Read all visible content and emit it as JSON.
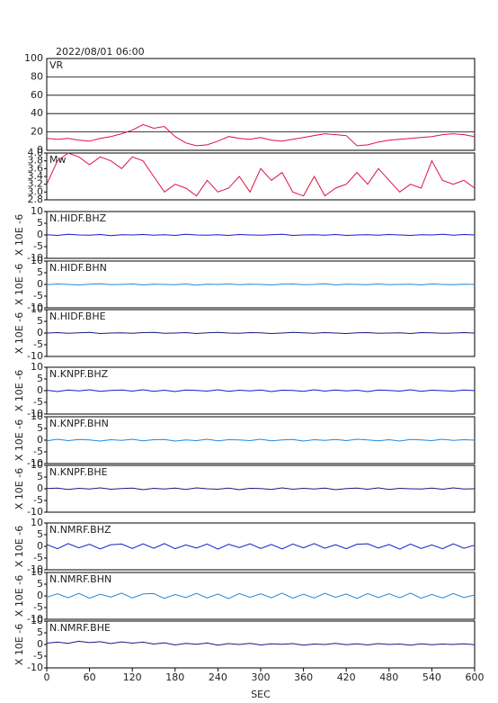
{
  "chart_data": [
    {
      "type": "line",
      "title": "2022/08/01 06:00",
      "x": [
        0,
        15,
        30,
        45,
        60,
        75,
        90,
        105,
        120,
        135,
        150,
        165,
        180,
        195,
        210,
        225,
        240,
        255,
        270,
        285,
        300,
        315,
        330,
        345,
        360,
        375,
        390,
        405,
        420,
        435,
        450,
        465,
        480,
        495,
        510,
        525,
        540,
        555,
        570,
        585,
        600
      ],
      "xlim": [
        0,
        600
      ],
      "ylim": [
        0,
        100
      ],
      "yticks": [
        0,
        20,
        40,
        60,
        80,
        100
      ],
      "grid": true,
      "series": [
        {
          "name": "VR",
          "color": "#dd1144",
          "values": [
            13,
            12,
            13,
            11,
            10,
            13,
            15,
            18,
            22,
            28,
            24,
            26,
            15,
            8,
            5,
            6,
            10,
            15,
            13,
            12,
            14,
            11,
            10,
            12,
            14,
            16,
            18,
            17,
            16,
            5,
            6,
            9,
            11,
            12,
            13,
            14,
            15,
            17,
            18,
            17,
            15
          ]
        }
      ]
    },
    {
      "type": "line",
      "x": [
        0,
        15,
        30,
        45,
        60,
        75,
        90,
        105,
        120,
        135,
        150,
        165,
        180,
        195,
        210,
        225,
        240,
        255,
        270,
        285,
        300,
        315,
        330,
        345,
        360,
        375,
        390,
        405,
        420,
        435,
        450,
        465,
        480,
        495,
        510,
        525,
        540,
        555,
        570,
        585,
        600
      ],
      "xlim": [
        0,
        600
      ],
      "ylim": [
        2.8,
        4.0
      ],
      "yticks": [
        2.8,
        {
          "value": 3,
          "label": "3.0"
        },
        3.2,
        3.4,
        3.6,
        3.8,
        {
          "value": 4,
          "label": "4.0"
        }
      ],
      "series": [
        {
          "name": "Mw",
          "color": "#dd1144",
          "values": [
            3.2,
            3.8,
            4.0,
            3.9,
            3.7,
            3.9,
            3.8,
            3.6,
            3.9,
            3.8,
            3.4,
            3.0,
            3.2,
            3.1,
            2.9,
            3.3,
            3.0,
            3.1,
            3.4,
            3.0,
            3.6,
            3.3,
            3.5,
            3.0,
            2.9,
            3.4,
            2.9,
            3.1,
            3.2,
            3.5,
            3.2,
            3.6,
            3.3,
            3.0,
            3.2,
            3.1,
            3.8,
            3.3,
            3.2,
            3.3,
            3.1
          ]
        }
      ]
    },
    {
      "type": "line",
      "ylabel": "X 10E -6",
      "x": [
        0,
        15,
        30,
        45,
        60,
        75,
        90,
        105,
        120,
        135,
        150,
        165,
        180,
        195,
        210,
        225,
        240,
        255,
        270,
        285,
        300,
        315,
        330,
        345,
        360,
        375,
        390,
        405,
        420,
        435,
        450,
        465,
        480,
        495,
        510,
        525,
        540,
        555,
        570,
        585,
        600
      ],
      "xlim": [
        0,
        600
      ],
      "ylim": [
        -10,
        10
      ],
      "yticks": [
        -10,
        -5,
        0,
        5,
        10
      ],
      "series": [
        {
          "name": "N.HIDF.BHZ",
          "color": "#1a1acc",
          "values": [
            0.1,
            -0.2,
            0.3,
            0,
            -0.1,
            0.2,
            -0.3,
            0.1,
            0,
            0.2,
            -0.1,
            0.1,
            -0.2,
            0.3,
            0,
            -0.1,
            0.1,
            -0.2,
            0.2,
            0,
            -0.1,
            0.1,
            0.3,
            -0.2,
            0,
            0.1,
            -0.1,
            0.2,
            -0.2,
            0,
            0.1,
            -0.1,
            0.2,
            0,
            -0.2,
            0.1,
            0,
            0.3,
            -0.1,
            0.2,
            0
          ]
        }
      ]
    },
    {
      "type": "line",
      "ylabel": "X 10E -6",
      "x": [
        0,
        15,
        30,
        45,
        60,
        75,
        90,
        105,
        120,
        135,
        150,
        165,
        180,
        195,
        210,
        225,
        240,
        255,
        270,
        285,
        300,
        315,
        330,
        345,
        360,
        375,
        390,
        405,
        420,
        435,
        450,
        465,
        480,
        495,
        510,
        525,
        540,
        555,
        570,
        585,
        600
      ],
      "xlim": [
        0,
        600
      ],
      "ylim": [
        -10,
        10
      ],
      "yticks": [
        -10,
        -5,
        0,
        5,
        10
      ],
      "series": [
        {
          "name": "N.HIDF.BHN",
          "color": "#2288dd",
          "values": [
            -0.1,
            0.2,
            0,
            -0.2,
            0.1,
            0.3,
            -0.1,
            0,
            0.2,
            -0.2,
            0.1,
            0,
            -0.1,
            0.2,
            -0.3,
            0.1,
            0,
            0.2,
            -0.1,
            0.1,
            0,
            -0.2,
            0.1,
            0.2,
            -0.1,
            0,
            0.3,
            -0.2,
            0.1,
            0,
            -0.1,
            0.2,
            -0.1,
            0,
            0.1,
            -0.2,
            0.2,
            0,
            -0.1,
            0.1,
            0
          ]
        }
      ]
    },
    {
      "type": "line",
      "ylabel": "X 10E -6",
      "x": [
        0,
        15,
        30,
        45,
        60,
        75,
        90,
        105,
        120,
        135,
        150,
        165,
        180,
        195,
        210,
        225,
        240,
        255,
        270,
        285,
        300,
        315,
        330,
        345,
        360,
        375,
        390,
        405,
        420,
        435,
        450,
        465,
        480,
        495,
        510,
        525,
        540,
        555,
        570,
        585,
        600
      ],
      "xlim": [
        0,
        600
      ],
      "ylim": [
        -10,
        10
      ],
      "yticks": [
        -10,
        -5,
        0,
        5,
        10
      ],
      "series": [
        {
          "name": "N.HIDF.BHE",
          "color": "#1a1a80",
          "values": [
            0,
            0.2,
            -0.1,
            0.1,
            0.3,
            -0.2,
            0,
            0.1,
            -0.1,
            0.2,
            0.3,
            -0.1,
            0,
            0.2,
            -0.2,
            0.1,
            0.3,
            0,
            -0.1,
            0.2,
            0.1,
            -0.2,
            0,
            0.3,
            0.1,
            -0.1,
            0.2,
            0,
            -0.2,
            0.1,
            0.2,
            -0.1,
            0,
            0.1,
            -0.2,
            0.2,
            0.1,
            -0.1,
            0,
            0.2,
            0
          ]
        }
      ]
    },
    {
      "type": "line",
      "ylabel": "X 10E -6",
      "x": [
        0,
        15,
        30,
        45,
        60,
        75,
        90,
        105,
        120,
        135,
        150,
        165,
        180,
        195,
        210,
        225,
        240,
        255,
        270,
        285,
        300,
        315,
        330,
        345,
        360,
        375,
        390,
        405,
        420,
        435,
        450,
        465,
        480,
        495,
        510,
        525,
        540,
        555,
        570,
        585,
        600
      ],
      "xlim": [
        0,
        600
      ],
      "ylim": [
        -10,
        10
      ],
      "yticks": [
        -10,
        -5,
        0,
        5,
        10
      ],
      "series": [
        {
          "name": "N.KNPF.BHZ",
          "color": "#1a1acc",
          "values": [
            0.2,
            -0.4,
            0.3,
            -0.1,
            0.4,
            -0.3,
            0.1,
            0.3,
            -0.2,
            0.4,
            -0.3,
            0.2,
            -0.4,
            0.3,
            0.1,
            -0.2,
            0.4,
            -0.3,
            0.2,
            -0.1,
            0.3,
            -0.4,
            0.2,
            0.1,
            -0.3,
            0.4,
            -0.2,
            0.3,
            -0.1,
            0.2,
            -0.4,
            0.3,
            0.1,
            -0.2,
            0.4,
            -0.3,
            0.2,
            0,
            -0.2,
            0.3,
            0
          ]
        }
      ]
    },
    {
      "type": "line",
      "ylabel": "X 10E -6",
      "x": [
        0,
        15,
        30,
        45,
        60,
        75,
        90,
        105,
        120,
        135,
        150,
        165,
        180,
        195,
        210,
        225,
        240,
        255,
        270,
        285,
        300,
        315,
        330,
        345,
        360,
        375,
        390,
        405,
        420,
        435,
        450,
        465,
        480,
        495,
        510,
        525,
        540,
        555,
        570,
        585,
        600
      ],
      "xlim": [
        0,
        600
      ],
      "ylim": [
        -10,
        10
      ],
      "yticks": [
        -10,
        -5,
        0,
        5,
        10
      ],
      "series": [
        {
          "name": "N.KNPF.BHN",
          "color": "#2288dd",
          "values": [
            -0.3,
            0.4,
            -0.2,
            0.3,
            0.1,
            -0.4,
            0.2,
            -0.1,
            0.4,
            -0.3,
            0.2,
            0.3,
            -0.4,
            0.1,
            -0.2,
            0.4,
            -0.3,
            0.2,
            0.1,
            -0.2,
            0.4,
            -0.3,
            0.1,
            0.3,
            -0.4,
            0.2,
            -0.1,
            0.3,
            -0.2,
            0.4,
            0.1,
            -0.3,
            0.2,
            -0.4,
            0.3,
            0.1,
            -0.2,
            0.4,
            -0.1,
            0.2,
            0
          ]
        }
      ]
    },
    {
      "type": "line",
      "ylabel": "X 10E -6",
      "x": [
        0,
        15,
        30,
        45,
        60,
        75,
        90,
        105,
        120,
        135,
        150,
        165,
        180,
        195,
        210,
        225,
        240,
        255,
        270,
        285,
        300,
        315,
        330,
        345,
        360,
        375,
        390,
        405,
        420,
        435,
        450,
        465,
        480,
        495,
        510,
        525,
        540,
        555,
        570,
        585,
        600
      ],
      "xlim": [
        0,
        600
      ],
      "ylim": [
        -10,
        10
      ],
      "yticks": [
        -10,
        -5,
        0,
        5,
        10
      ],
      "series": [
        {
          "name": "N.KNPF.BHE",
          "color": "#1a1a80",
          "values": [
            0.1,
            0.3,
            -0.3,
            0.2,
            -0.1,
            0.4,
            -0.2,
            0.1,
            0.3,
            -0.4,
            0.2,
            -0.1,
            0.3,
            -0.3,
            0.4,
            0,
            -0.2,
            0.3,
            -0.4,
            0.2,
            0.1,
            -0.3,
            0.4,
            -0.2,
            0.2,
            -0.1,
            0.3,
            -0.4,
            0.1,
            0.3,
            -0.2,
            0.4,
            -0.3,
            0.2,
            0,
            -0.1,
            0.3,
            -0.2,
            0.4,
            -0.1,
            0
          ]
        }
      ]
    },
    {
      "type": "line",
      "ylabel": "X 10E -6",
      "x": [
        0,
        15,
        30,
        45,
        60,
        75,
        90,
        105,
        120,
        135,
        150,
        165,
        180,
        195,
        210,
        225,
        240,
        255,
        270,
        285,
        300,
        315,
        330,
        345,
        360,
        375,
        390,
        405,
        420,
        435,
        450,
        465,
        480,
        495,
        510,
        525,
        540,
        555,
        570,
        585,
        600
      ],
      "xlim": [
        0,
        600
      ],
      "ylim": [
        -10,
        10
      ],
      "yticks": [
        -10,
        -5,
        0,
        5,
        10
      ],
      "series": [
        {
          "name": "N.NMRF.BHZ",
          "color": "#1a1acc",
          "values": [
            0.8,
            -1.0,
            1.2,
            -0.6,
            0.9,
            -1.1,
            0.7,
            1.0,
            -0.9,
            1.1,
            -0.8,
            1.2,
            -1.0,
            0.6,
            -0.7,
            1.0,
            -1.2,
            0.9,
            -0.5,
            1.1,
            -0.9,
            0.8,
            -1.1,
            1.0,
            -0.6,
            1.2,
            -0.8,
            0.7,
            -1.0,
            0.9,
            1.1,
            -0.7,
            0.8,
            -1.2,
            1.0,
            -0.9,
            0.6,
            -1.0,
            1.1,
            -0.8,
            0.5
          ]
        }
      ]
    },
    {
      "type": "line",
      "ylabel": "X 10E -6",
      "x": [
        0,
        15,
        30,
        45,
        60,
        75,
        90,
        105,
        120,
        135,
        150,
        165,
        180,
        195,
        210,
        225,
        240,
        255,
        270,
        285,
        300,
        315,
        330,
        345,
        360,
        375,
        390,
        405,
        420,
        435,
        450,
        465,
        480,
        495,
        510,
        525,
        540,
        555,
        570,
        585,
        600
      ],
      "xlim": [
        0,
        600
      ],
      "ylim": [
        -10,
        10
      ],
      "yticks": [
        -10,
        -5,
        0,
        5,
        10
      ],
      "series": [
        {
          "name": "N.NMRF.BHN",
          "color": "#2288dd",
          "values": [
            -0.6,
            0.9,
            -0.8,
            1.1,
            -1.0,
            0.7,
            -0.5,
            1.2,
            -0.9,
            0.8,
            1.0,
            -1.1,
            0.6,
            -0.7,
            1.1,
            -0.9,
            0.8,
            -1.2,
            1.0,
            -0.6,
            0.9,
            -0.8,
            1.2,
            -1.0,
            0.7,
            -0.9,
            1.1,
            -0.6,
            0.8,
            -1.1,
            1.0,
            -0.7,
            0.9,
            -0.8,
            1.2,
            -1.0,
            0.6,
            -0.9,
            1.0,
            -0.7,
            0.4
          ]
        }
      ]
    },
    {
      "type": "line",
      "ylabel": "X 10E -6",
      "xlabel": "SEC",
      "x": [
        0,
        15,
        30,
        45,
        60,
        75,
        90,
        105,
        120,
        135,
        150,
        165,
        180,
        195,
        210,
        225,
        240,
        255,
        270,
        285,
        300,
        315,
        330,
        345,
        360,
        375,
        390,
        405,
        420,
        435,
        450,
        465,
        480,
        495,
        510,
        525,
        540,
        555,
        570,
        585,
        600
      ],
      "xlim": [
        0,
        600
      ],
      "xticks": [
        0,
        60,
        120,
        180,
        240,
        300,
        360,
        420,
        480,
        540,
        600
      ],
      "ylim": [
        -10,
        10
      ],
      "yticks": [
        -10,
        -5,
        0,
        5,
        10
      ],
      "series": [
        {
          "name": "N.NMRF.BHE",
          "color": "#1a1a80",
          "values": [
            0.6,
            1.0,
            0.5,
            1.4,
            0.8,
            1.2,
            0.4,
            1.1,
            0.6,
            1.0,
            0.2,
            0.7,
            -0.2,
            0.5,
            0.1,
            0.6,
            -0.3,
            0.4,
            0,
            0.5,
            -0.2,
            0.3,
            0.1,
            0.4,
            -0.3,
            0.2,
            0,
            0.5,
            -0.1,
            0.3,
            -0.2,
            0.4,
            0,
            0.2,
            -0.3,
            0.3,
            -0.1,
            0.2,
            0,
            0.3,
            -0.1
          ]
        }
      ]
    }
  ]
}
